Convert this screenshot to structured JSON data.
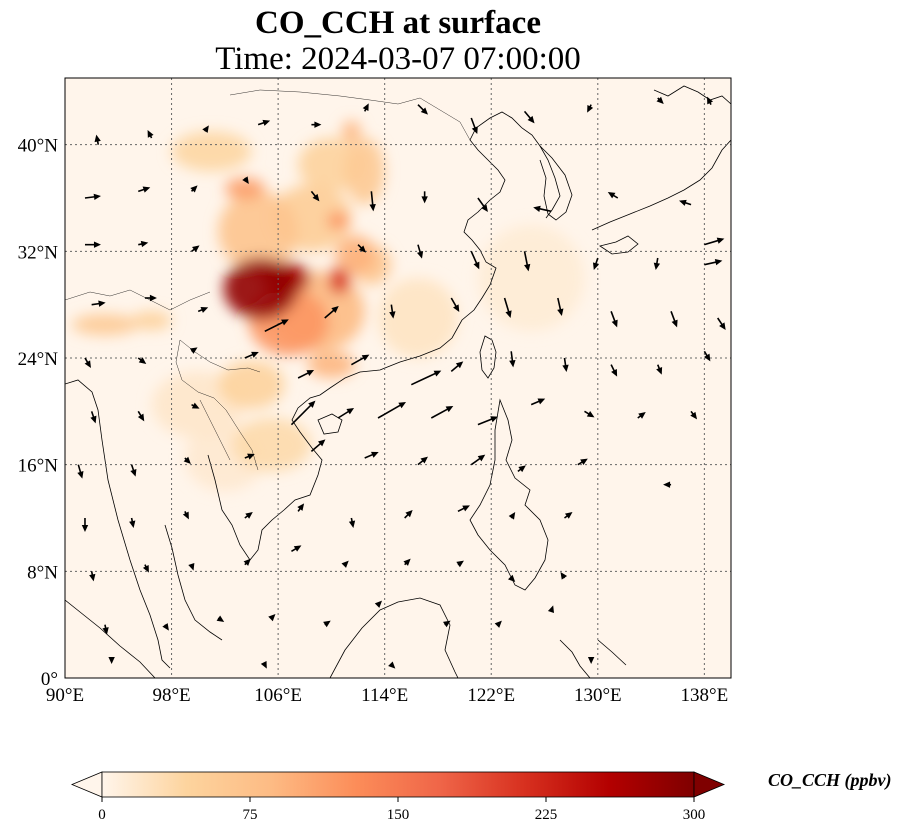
{
  "title": {
    "line1": "CO_CCH at surface",
    "line2": "Time: 2024-03-07 07:00:00"
  },
  "map": {
    "extent": {
      "lon_min": 90,
      "lon_max": 140,
      "lat_min": 0,
      "lat_max": 45
    },
    "x_ticks": [
      {
        "lon": 90,
        "label": "90°E"
      },
      {
        "lon": 98,
        "label": "98°E"
      },
      {
        "lon": 106,
        "label": "106°E"
      },
      {
        "lon": 114,
        "label": "114°E"
      },
      {
        "lon": 122,
        "label": "122°E"
      },
      {
        "lon": 130,
        "label": "130°E"
      },
      {
        "lon": 138,
        "label": "138°E"
      }
    ],
    "y_ticks": [
      {
        "lat": 0,
        "label": "0°"
      },
      {
        "lat": 8,
        "label": "8°N"
      },
      {
        "lat": 16,
        "label": "16°N"
      },
      {
        "lat": 24,
        "label": "24°N"
      },
      {
        "lat": 32,
        "label": "32°N"
      },
      {
        "lat": 40,
        "label": "40°N"
      }
    ],
    "gridlines": "dotted",
    "background_color": "#fff5eb",
    "plumes": [
      {
        "lon": 104.7,
        "lat": 29.2,
        "rlon": 2.8,
        "rlat": 2.3,
        "value": 285
      },
      {
        "lon": 106.6,
        "lat": 30.0,
        "rlon": 1.8,
        "rlat": 1.2,
        "value": 265
      },
      {
        "lon": 110.6,
        "lat": 29.8,
        "rlon": 0.8,
        "rlat": 1.0,
        "value": 215
      },
      {
        "lon": 106.8,
        "lat": 26.7,
        "rlon": 3.0,
        "rlat": 2.5,
        "value": 120
      },
      {
        "lon": 109.0,
        "lat": 27.5,
        "rlon": 3.5,
        "rlat": 3.0,
        "value": 85
      },
      {
        "lon": 104.5,
        "lat": 33.5,
        "rlon": 3.0,
        "rlat": 3.0,
        "value": 70
      },
      {
        "lon": 108.5,
        "lat": 34.5,
        "rlon": 3.0,
        "rlat": 2.5,
        "value": 55
      },
      {
        "lon": 103.5,
        "lat": 36.7,
        "rlon": 1.5,
        "rlat": 0.8,
        "value": 115
      },
      {
        "lon": 110.5,
        "lat": 34.3,
        "rlon": 0.8,
        "rlat": 0.6,
        "value": 130
      },
      {
        "lon": 111.8,
        "lat": 31.7,
        "rlon": 1.5,
        "rlat": 1.5,
        "value": 95
      },
      {
        "lon": 111.5,
        "lat": 41.0,
        "rlon": 0.7,
        "rlat": 0.8,
        "value": 90
      },
      {
        "lon": 110.0,
        "lat": 38.5,
        "rlon": 2.5,
        "rlat": 2.0,
        "value": 45
      },
      {
        "lon": 112.5,
        "lat": 38.0,
        "rlon": 1.5,
        "rlat": 2.5,
        "value": 60
      },
      {
        "lon": 101.0,
        "lat": 39.5,
        "rlon": 3.0,
        "rlat": 1.5,
        "value": 40
      },
      {
        "lon": 113.0,
        "lat": 31.0,
        "rlon": 1.5,
        "rlat": 1.5,
        "value": 65
      },
      {
        "lon": 110.0,
        "lat": 23.5,
        "rlon": 1.8,
        "rlat": 1.0,
        "value": 90
      },
      {
        "lon": 104.0,
        "lat": 22.0,
        "rlon": 2.5,
        "rlat": 1.8,
        "value": 45
      },
      {
        "lon": 105.5,
        "lat": 17.5,
        "rlon": 3.0,
        "rlat": 2.0,
        "value": 35
      },
      {
        "lon": 116.5,
        "lat": 27.0,
        "rlon": 3.0,
        "rlat": 3.0,
        "value": 22
      },
      {
        "lon": 93.0,
        "lat": 26.5,
        "rlon": 2.5,
        "rlat": 0.8,
        "value": 60
      },
      {
        "lon": 96.5,
        "lat": 26.8,
        "rlon": 1.5,
        "rlat": 0.7,
        "value": 50
      },
      {
        "lon": 100.0,
        "lat": 20.5,
        "rlon": 3.5,
        "rlat": 2.5,
        "value": 18
      },
      {
        "lon": 102.0,
        "lat": 16.5,
        "rlon": 3.0,
        "rlat": 2.5,
        "value": 15
      },
      {
        "lon": 125.0,
        "lat": 30.0,
        "rlon": 4.0,
        "rlat": 4.0,
        "value": 12
      }
    ],
    "wind_vectors": [
      {
        "lon": 92.5,
        "lat": 40.0,
        "u": -0.1,
        "v": 0.5
      },
      {
        "lon": 96.5,
        "lat": 40.5,
        "u": -0.2,
        "v": 0.4
      },
      {
        "lon": 100.5,
        "lat": 41.0,
        "u": 0.2,
        "v": 0.3
      },
      {
        "lon": 104.5,
        "lat": 41.5,
        "u": 0.6,
        "v": 0.2
      },
      {
        "lon": 108.5,
        "lat": 41.5,
        "u": 0.5,
        "v": 0.0
      },
      {
        "lon": 112.5,
        "lat": 42.5,
        "u": 0.2,
        "v": 0.4
      },
      {
        "lon": 116.5,
        "lat": 43.0,
        "u": 0.5,
        "v": -0.5
      },
      {
        "lon": 120.5,
        "lat": 42.0,
        "u": 0.3,
        "v": -0.8
      },
      {
        "lon": 124.5,
        "lat": 42.5,
        "u": 0.5,
        "v": -0.6
      },
      {
        "lon": 129.5,
        "lat": 43.0,
        "u": -0.2,
        "v": -0.4
      },
      {
        "lon": 134.5,
        "lat": 43.5,
        "u": 0.3,
        "v": -0.3
      },
      {
        "lon": 138.5,
        "lat": 43.0,
        "u": -0.2,
        "v": 0.4
      },
      {
        "lon": 91.5,
        "lat": 36.0,
        "u": 0.8,
        "v": 0.1
      },
      {
        "lon": 95.5,
        "lat": 36.5,
        "u": 0.6,
        "v": 0.2
      },
      {
        "lon": 99.5,
        "lat": 36.5,
        "u": 0.3,
        "v": 0.3
      },
      {
        "lon": 103.5,
        "lat": 37.5,
        "u": 0.2,
        "v": -0.3
      },
      {
        "lon": 108.5,
        "lat": 36.5,
        "u": 0.4,
        "v": -0.5
      },
      {
        "lon": 113.0,
        "lat": 36.5,
        "u": 0.1,
        "v": -1.0
      },
      {
        "lon": 117.0,
        "lat": 36.5,
        "u": 0.0,
        "v": -0.6
      },
      {
        "lon": 121.0,
        "lat": 36.0,
        "u": 0.5,
        "v": -0.7
      },
      {
        "lon": 126.5,
        "lat": 35.0,
        "u": -0.9,
        "v": 0.2
      },
      {
        "lon": 131.5,
        "lat": 36.0,
        "u": -0.5,
        "v": 0.3
      },
      {
        "lon": 137.0,
        "lat": 35.5,
        "u": -0.6,
        "v": 0.2
      },
      {
        "lon": 91.5,
        "lat": 32.5,
        "u": 0.8,
        "v": 0.0
      },
      {
        "lon": 95.5,
        "lat": 32.5,
        "u": 0.5,
        "v": 0.1
      },
      {
        "lon": 99.5,
        "lat": 32.0,
        "u": 0.4,
        "v": 0.3
      },
      {
        "lon": 112.0,
        "lat": 32.5,
        "u": 0.4,
        "v": -0.4
      },
      {
        "lon": 116.5,
        "lat": 32.5,
        "u": 0.2,
        "v": -0.7
      },
      {
        "lon": 120.5,
        "lat": 32.0,
        "u": 0.4,
        "v": -0.9
      },
      {
        "lon": 124.5,
        "lat": 32.0,
        "u": 0.2,
        "v": -1.0
      },
      {
        "lon": 130.0,
        "lat": 31.5,
        "u": -0.2,
        "v": -0.6
      },
      {
        "lon": 134.5,
        "lat": 31.5,
        "u": -0.1,
        "v": -0.6
      },
      {
        "lon": 138.0,
        "lat": 32.5,
        "u": 1.0,
        "v": 0.3
      },
      {
        "lon": 138.0,
        "lat": 31.0,
        "u": 0.9,
        "v": 0.2
      },
      {
        "lon": 92.0,
        "lat": 28.0,
        "u": 0.7,
        "v": 0.1
      },
      {
        "lon": 96.0,
        "lat": 28.5,
        "u": 0.6,
        "v": 0.0
      },
      {
        "lon": 100.0,
        "lat": 27.5,
        "u": 0.5,
        "v": 0.2
      },
      {
        "lon": 105.0,
        "lat": 26.0,
        "u": 1.2,
        "v": 0.6
      },
      {
        "lon": 109.5,
        "lat": 27.0,
        "u": 0.7,
        "v": 0.6
      },
      {
        "lon": 114.5,
        "lat": 28.0,
        "u": 0.1,
        "v": -0.7
      },
      {
        "lon": 119.0,
        "lat": 28.5,
        "u": 0.4,
        "v": -0.7
      },
      {
        "lon": 123.0,
        "lat": 28.5,
        "u": 0.3,
        "v": -1.0
      },
      {
        "lon": 127.0,
        "lat": 28.5,
        "u": 0.2,
        "v": -0.9
      },
      {
        "lon": 131.0,
        "lat": 27.5,
        "u": 0.3,
        "v": -0.8
      },
      {
        "lon": 135.5,
        "lat": 27.5,
        "u": 0.3,
        "v": -0.8
      },
      {
        "lon": 139.0,
        "lat": 27.0,
        "u": 0.4,
        "v": -0.6
      },
      {
        "lon": 91.5,
        "lat": 24.0,
        "u": 0.3,
        "v": -0.5
      },
      {
        "lon": 95.5,
        "lat": 24.0,
        "u": 0.4,
        "v": -0.3
      },
      {
        "lon": 99.5,
        "lat": 24.5,
        "u": 0.3,
        "v": 0.2
      },
      {
        "lon": 103.5,
        "lat": 24.0,
        "u": 0.7,
        "v": 0.3
      },
      {
        "lon": 107.5,
        "lat": 22.5,
        "u": 0.8,
        "v": 0.4
      },
      {
        "lon": 111.5,
        "lat": 23.5,
        "u": 0.9,
        "v": 0.5
      },
      {
        "lon": 116.0,
        "lat": 22.0,
        "u": 1.5,
        "v": 0.7
      },
      {
        "lon": 119.0,
        "lat": 23.0,
        "u": 0.6,
        "v": 0.5
      },
      {
        "lon": 123.5,
        "lat": 24.5,
        "u": 0.1,
        "v": -0.8
      },
      {
        "lon": 127.5,
        "lat": 24.0,
        "u": 0.1,
        "v": -0.7
      },
      {
        "lon": 131.0,
        "lat": 23.5,
        "u": 0.3,
        "v": -0.6
      },
      {
        "lon": 134.5,
        "lat": 23.5,
        "u": 0.2,
        "v": -0.5
      },
      {
        "lon": 138.0,
        "lat": 24.5,
        "u": 0.3,
        "v": -0.5
      },
      {
        "lon": 92.0,
        "lat": 20.0,
        "u": 0.2,
        "v": -0.6
      },
      {
        "lon": 95.5,
        "lat": 20.0,
        "u": 0.3,
        "v": -0.5
      },
      {
        "lon": 99.5,
        "lat": 20.5,
        "u": 0.4,
        "v": -0.2
      },
      {
        "lon": 107.0,
        "lat": 19.0,
        "u": 1.2,
        "v": 1.2
      },
      {
        "lon": 110.5,
        "lat": 19.5,
        "u": 0.8,
        "v": 0.5
      },
      {
        "lon": 113.5,
        "lat": 19.5,
        "u": 1.4,
        "v": 0.8
      },
      {
        "lon": 117.5,
        "lat": 19.5,
        "u": 1.1,
        "v": 0.6
      },
      {
        "lon": 121.0,
        "lat": 19.0,
        "u": 1.0,
        "v": 0.4
      },
      {
        "lon": 125.0,
        "lat": 20.5,
        "u": 0.7,
        "v": 0.3
      },
      {
        "lon": 129.0,
        "lat": 20.0,
        "u": 0.5,
        "v": -0.3
      },
      {
        "lon": 133.0,
        "lat": 19.5,
        "u": 0.4,
        "v": 0.3
      },
      {
        "lon": 137.0,
        "lat": 20.0,
        "u": 0.3,
        "v": -0.4
      },
      {
        "lon": 91.0,
        "lat": 16.0,
        "u": 0.2,
        "v": -0.7
      },
      {
        "lon": 95.0,
        "lat": 16.0,
        "u": 0.2,
        "v": -0.6
      },
      {
        "lon": 99.0,
        "lat": 16.5,
        "u": 0.3,
        "v": -0.3
      },
      {
        "lon": 103.5,
        "lat": 16.5,
        "u": 0.5,
        "v": 0.2
      },
      {
        "lon": 108.5,
        "lat": 17.0,
        "u": 0.7,
        "v": 0.6
      },
      {
        "lon": 112.5,
        "lat": 16.5,
        "u": 0.7,
        "v": 0.3
      },
      {
        "lon": 116.5,
        "lat": 16.0,
        "u": 0.5,
        "v": 0.4
      },
      {
        "lon": 120.5,
        "lat": 16.0,
        "u": 0.7,
        "v": 0.5
      },
      {
        "lon": 124.0,
        "lat": 15.5,
        "u": 0.4,
        "v": 0.3
      },
      {
        "lon": 128.5,
        "lat": 16.0,
        "u": 0.5,
        "v": 0.3
      },
      {
        "lon": 135.5,
        "lat": 14.5,
        "u": -0.4,
        "v": 0.0
      },
      {
        "lon": 91.5,
        "lat": 12.0,
        "u": 0.0,
        "v": -0.7
      },
      {
        "lon": 95.0,
        "lat": 12.0,
        "u": 0.1,
        "v": -0.5
      },
      {
        "lon": 99.0,
        "lat": 12.5,
        "u": 0.2,
        "v": -0.4
      },
      {
        "lon": 103.5,
        "lat": 12.0,
        "u": 0.4,
        "v": 0.3
      },
      {
        "lon": 107.5,
        "lat": 12.5,
        "u": 0.3,
        "v": 0.4
      },
      {
        "lon": 111.5,
        "lat": 12.0,
        "u": 0.1,
        "v": -0.5
      },
      {
        "lon": 115.5,
        "lat": 12.0,
        "u": 0.4,
        "v": 0.4
      },
      {
        "lon": 119.5,
        "lat": 12.5,
        "u": 0.6,
        "v": 0.3
      },
      {
        "lon": 123.5,
        "lat": 12.0,
        "u": 0.2,
        "v": 0.3
      },
      {
        "lon": 127.5,
        "lat": 12.0,
        "u": 0.4,
        "v": 0.3
      },
      {
        "lon": 92.0,
        "lat": 8.0,
        "u": 0.1,
        "v": -0.5
      },
      {
        "lon": 96.0,
        "lat": 8.5,
        "u": 0.2,
        "v": -0.4
      },
      {
        "lon": 99.5,
        "lat": 8.5,
        "u": 0.1,
        "v": -0.3
      },
      {
        "lon": 103.5,
        "lat": 8.5,
        "u": 0.3,
        "v": 0.3
      },
      {
        "lon": 107.0,
        "lat": 9.5,
        "u": 0.5,
        "v": 0.3
      },
      {
        "lon": 111.0,
        "lat": 8.5,
        "u": 0.2,
        "v": 0.2
      },
      {
        "lon": 115.5,
        "lat": 8.5,
        "u": 0.3,
        "v": 0.3
      },
      {
        "lon": 119.5,
        "lat": 8.5,
        "u": 0.3,
        "v": 0.2
      },
      {
        "lon": 123.5,
        "lat": 7.5,
        "u": 0.2,
        "v": -0.2
      },
      {
        "lon": 127.5,
        "lat": 7.5,
        "u": -0.2,
        "v": 0.3
      },
      {
        "lon": 93.0,
        "lat": 4.0,
        "u": 0.1,
        "v": -0.5
      },
      {
        "lon": 97.5,
        "lat": 4.0,
        "u": 0.2,
        "v": -0.3
      },
      {
        "lon": 101.5,
        "lat": 4.5,
        "u": 0.3,
        "v": -0.2
      },
      {
        "lon": 105.5,
        "lat": 4.5,
        "u": 0.2,
        "v": 0.2
      },
      {
        "lon": 109.5,
        "lat": 4.0,
        "u": 0.3,
        "v": 0.2
      },
      {
        "lon": 113.5,
        "lat": 5.5,
        "u": 0.2,
        "v": 0.2
      },
      {
        "lon": 118.5,
        "lat": 4.0,
        "u": 0.3,
        "v": 0.2
      },
      {
        "lon": 122.5,
        "lat": 4.0,
        "u": 0.2,
        "v": 0.2
      },
      {
        "lon": 126.5,
        "lat": 5.0,
        "u": 0.1,
        "v": 0.3
      },
      {
        "lon": 93.5,
        "lat": 1.5,
        "u": 0.0,
        "v": -0.3
      },
      {
        "lon": 105.0,
        "lat": 1.0,
        "u": 0.1,
        "v": -0.2
      },
      {
        "lon": 114.5,
        "lat": 1.0,
        "u": 0.2,
        "v": -0.2
      },
      {
        "lon": 129.5,
        "lat": 1.5,
        "u": 0.0,
        "v": -0.3
      }
    ]
  },
  "colorbar": {
    "label": "CO_CCH (ppbv)",
    "min": 0,
    "max": 300,
    "ticks": [
      {
        "value": 0,
        "label": "0"
      },
      {
        "value": 75,
        "label": "75"
      },
      {
        "value": 150,
        "label": "150"
      },
      {
        "value": 225,
        "label": "225"
      },
      {
        "value": 300,
        "label": "300"
      }
    ],
    "colormap": "OrRd",
    "colors": [
      "#fff5eb",
      "#fdd49e",
      "#fdbb84",
      "#fc8d59",
      "#ef6548",
      "#d7301f",
      "#b30000",
      "#7f0000"
    ],
    "extend": "both"
  }
}
